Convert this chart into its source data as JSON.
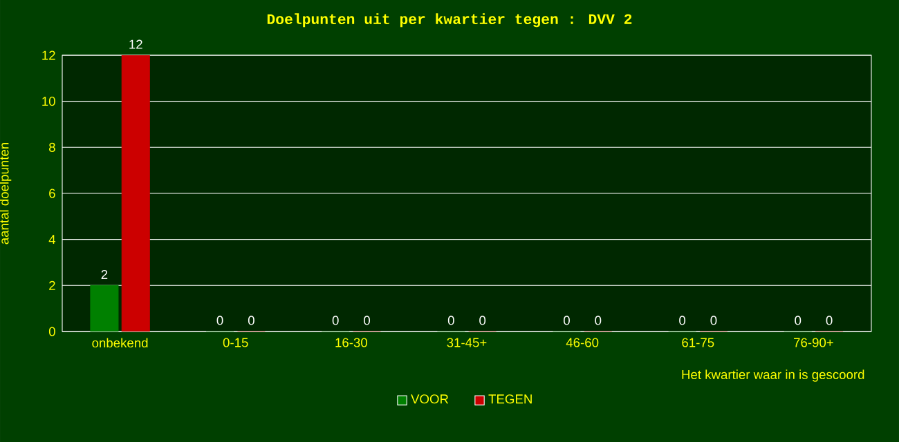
{
  "chart_data": {
    "type": "bar",
    "title": "Doelpunten uit per kwartier tegen : DVV 2",
    "xlabel": "Het kwartier waar in is gescoord",
    "ylabel": "aantal doelpunten",
    "categories": [
      "onbekend",
      "0-15",
      "16-30",
      "31-45+",
      "46-60",
      "61-75",
      "76-90+"
    ],
    "series": [
      {
        "name": "VOOR",
        "color": "#008000",
        "values": [
          2,
          0,
          0,
          0,
          0,
          0,
          0
        ]
      },
      {
        "name": "TEGEN",
        "color": "#cc0000",
        "values": [
          12,
          0,
          0,
          0,
          0,
          0,
          0
        ]
      }
    ],
    "ylim": [
      0,
      12
    ],
    "yticks": [
      0,
      2,
      4,
      6,
      8,
      10,
      12
    ],
    "grid": "y",
    "legend": "bottom",
    "data_labels": true
  }
}
